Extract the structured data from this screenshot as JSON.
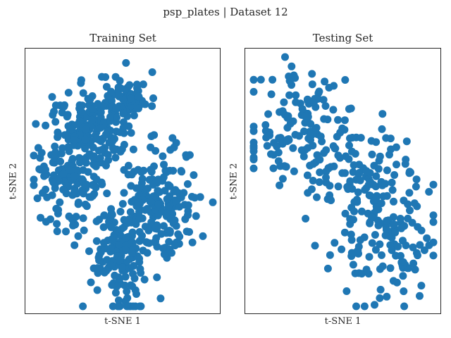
{
  "suptitle": "psp_plates | Dataset 12",
  "marker_color": "#1f77b4",
  "chart_data": [
    {
      "type": "scatter",
      "title": "Training Set",
      "xlabel": "t-SNE 1",
      "ylabel": "t-SNE 2",
      "xlim": [
        0,
        100
      ],
      "ylim": [
        0,
        100
      ],
      "grid": false,
      "clusters": [
        {
          "center": [
            50,
            84
          ],
          "spread": [
            7,
            5
          ],
          "count": 70,
          "seed": 11
        },
        {
          "center": [
            33,
            70
          ],
          "spread": [
            12,
            8
          ],
          "count": 160,
          "seed": 12
        },
        {
          "center": [
            20,
            50
          ],
          "spread": [
            10,
            10
          ],
          "count": 130,
          "seed": 13
        },
        {
          "center": [
            72,
            42
          ],
          "spread": [
            11,
            12
          ],
          "count": 170,
          "seed": 14
        },
        {
          "center": [
            50,
            22
          ],
          "spread": [
            8,
            12
          ],
          "count": 160,
          "seed": 15
        }
      ]
    },
    {
      "type": "scatter",
      "title": "Testing Set",
      "xlabel": "t-SNE 1",
      "ylabel": "t-SNE 2",
      "xlim": [
        0,
        100
      ],
      "ylim": [
        0,
        100
      ],
      "grid": false,
      "clusters": [
        {
          "center": [
            28,
            70
          ],
          "spread": [
            18,
            12
          ],
          "count": 140,
          "seed": 21
        },
        {
          "center": [
            56,
            52
          ],
          "spread": [
            14,
            10
          ],
          "count": 80,
          "seed": 22
        },
        {
          "center": [
            72,
            28
          ],
          "spread": [
            14,
            14
          ],
          "count": 140,
          "seed": 23
        }
      ]
    }
  ]
}
